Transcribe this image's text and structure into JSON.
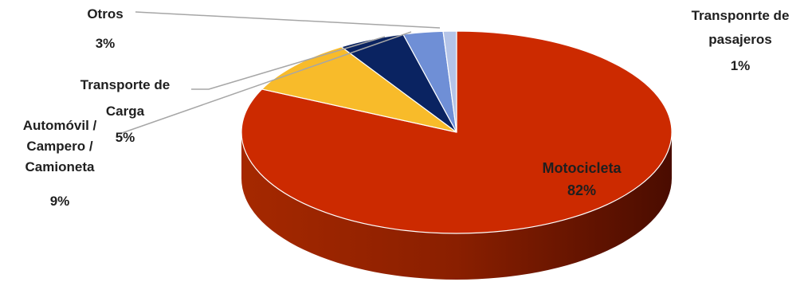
{
  "chart_data": {
    "type": "pie",
    "style": "3d",
    "start_angle_deg": 90,
    "direction": "clockwise",
    "slices": [
      {
        "name": "Motocicleta",
        "percent": "82%",
        "value": 82,
        "color": "#cc2a00",
        "label_lines": [
          "Motocicleta",
          "82%"
        ]
      },
      {
        "name": "Automóvil / Campero / Camioneta",
        "percent": "9%",
        "value": 9,
        "color": "#f8bb2a",
        "label_lines": [
          "Automóvil /",
          "Campero /",
          "Camioneta",
          "9%"
        ]
      },
      {
        "name": "Transporte de Carga",
        "percent": "5%",
        "value": 5,
        "color": "#0a2361",
        "label_lines": [
          "Transporte de",
          "Carga",
          "5%"
        ]
      },
      {
        "name": "Otros",
        "percent": "3%",
        "value": 3,
        "color": "#6f8fd6",
        "label_lines": [
          "Otros",
          "3%"
        ]
      },
      {
        "name": "Transponrte de pasajeros",
        "percent": "1%",
        "value": 1,
        "color": "#b4c4e8",
        "label_lines": [
          "Transponrte de",
          "pasajeros",
          "1%"
        ]
      }
    ]
  }
}
